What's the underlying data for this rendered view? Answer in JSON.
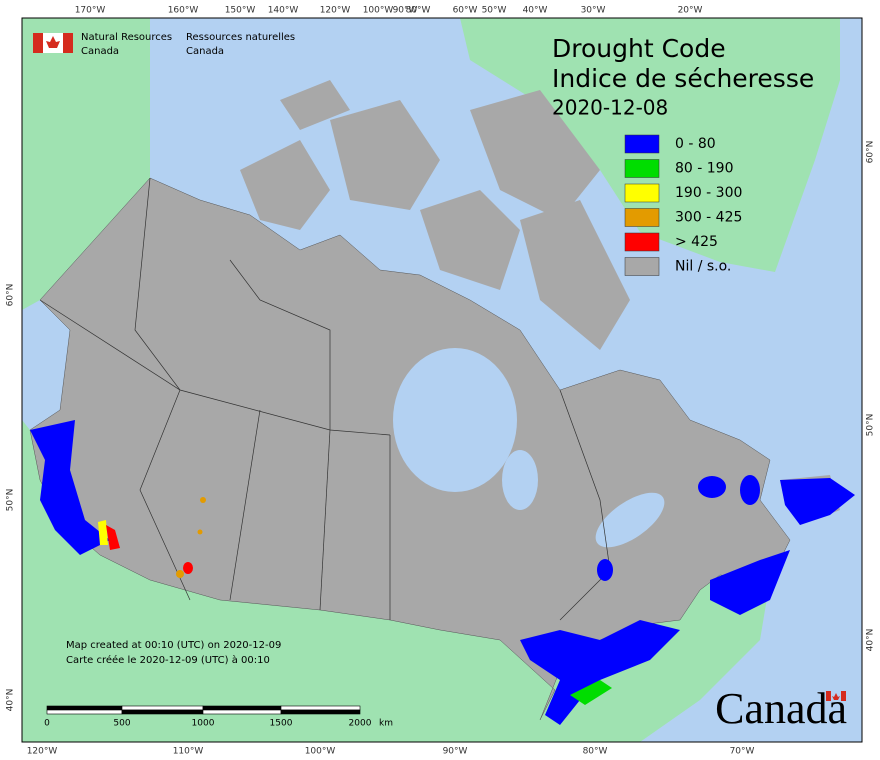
{
  "header": {
    "agency_en": [
      "Natural Resources",
      "Canada"
    ],
    "agency_fr": [
      "Ressources naturelles",
      "Canada"
    ]
  },
  "title": {
    "line1": "Drought Code",
    "line2": "Indice de sécheresse",
    "date": "2020-12-08"
  },
  "legend": [
    {
      "label": "0 - 80",
      "color": "#0000ff"
    },
    {
      "label": "80 - 190",
      "color": "#00dd00"
    },
    {
      "label": "190 - 300",
      "color": "#ffff00"
    },
    {
      "label": "300 - 425",
      "color": "#e39b00"
    },
    {
      "label": "> 425",
      "color": "#ff0000"
    },
    {
      "label": "Nil / s.o.",
      "color": "#a8a8a8"
    }
  ],
  "graticule": {
    "top": [
      "170°W",
      "160°W",
      "150°W",
      "140°W",
      "120°W",
      "100°W",
      "90°W",
      "80°W",
      "60°W",
      "50°W",
      "40°W",
      "30°W",
      "20°W"
    ],
    "bottom": [
      "120°W",
      "110°W",
      "100°W",
      "90°W",
      "80°W",
      "70°W"
    ],
    "left": [
      "60°N",
      "50°N",
      "40°N"
    ],
    "right": [
      "60°N",
      "50°N",
      "40°N"
    ]
  },
  "notes": [
    "Map created at 00:10 (UTC) on 2020-12-09",
    "Carte créée le 2020-12-09 (UTC) à 00:10"
  ],
  "scale": {
    "ticks": [
      0,
      500,
      1000,
      1500,
      2000
    ],
    "unit": "km"
  },
  "wordmark": "Canada"
}
